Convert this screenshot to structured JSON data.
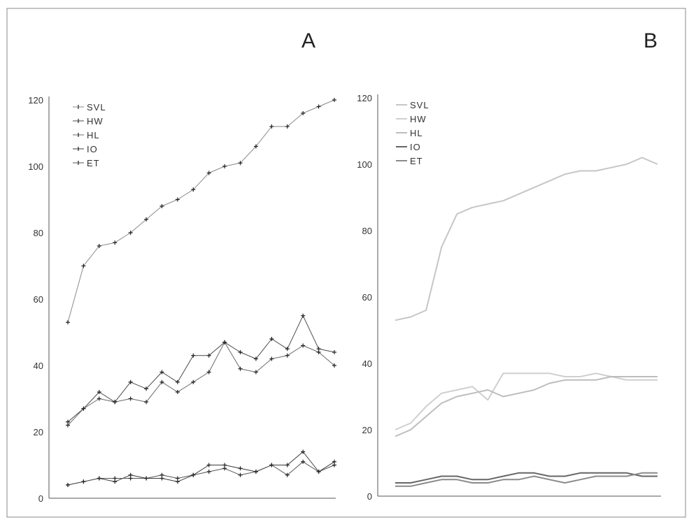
{
  "chart_data": [
    {
      "type": "line",
      "title": "A",
      "xlabel": "",
      "ylabel": "",
      "ylim": [
        0,
        120
      ],
      "yticks": [
        0,
        20,
        40,
        60,
        80,
        100,
        120
      ],
      "legend": "top-left",
      "x": [
        1,
        2,
        3,
        4,
        5,
        6,
        7,
        8,
        9,
        10,
        11,
        12,
        13,
        14,
        15,
        16,
        17,
        18
      ],
      "series": [
        {
          "name": "SVL",
          "values": [
            53,
            70,
            76,
            77,
            80,
            84,
            88,
            90,
            93,
            98,
            100,
            101,
            106,
            112,
            112,
            116,
            118,
            120
          ]
        },
        {
          "name": "HW",
          "values": [
            23,
            27,
            32,
            29,
            35,
            33,
            38,
            35,
            43,
            43,
            47,
            44,
            42,
            48,
            45,
            55,
            45,
            44
          ]
        },
        {
          "name": "HL",
          "values": [
            22,
            27,
            30,
            29,
            30,
            29,
            35,
            32,
            35,
            38,
            47,
            39,
            38,
            42,
            43,
            46,
            44,
            40
          ]
        },
        {
          "name": "IO",
          "values": [
            4,
            5,
            6,
            5,
            7,
            6,
            6,
            5,
            7,
            10,
            10,
            9,
            8,
            10,
            10,
            14,
            8,
            11
          ]
        },
        {
          "name": "ET",
          "values": [
            4,
            5,
            6,
            6,
            6,
            6,
            7,
            6,
            7,
            8,
            9,
            7,
            8,
            10,
            7,
            11,
            8,
            10
          ]
        }
      ]
    },
    {
      "type": "line",
      "title": "B",
      "xlabel": "",
      "ylabel": "",
      "ylim": [
        0,
        120
      ],
      "yticks": [
        0,
        20,
        40,
        60,
        80,
        100,
        120
      ],
      "legend": "top-left",
      "x": [
        1,
        2,
        3,
        4,
        5,
        6,
        7,
        8,
        9,
        10,
        11,
        12,
        13,
        14,
        15,
        16,
        17,
        18
      ],
      "series": [
        {
          "name": "SVL",
          "values": [
            53,
            54,
            56,
            75,
            85,
            87,
            88,
            89,
            91,
            93,
            95,
            97,
            98,
            98,
            99,
            100,
            102,
            100
          ]
        },
        {
          "name": "HW",
          "values": [
            20,
            22,
            27,
            31,
            32,
            33,
            29,
            37,
            37,
            37,
            37,
            36,
            36,
            37,
            36,
            35,
            35,
            35
          ]
        },
        {
          "name": "HL",
          "values": [
            18,
            20,
            24,
            28,
            30,
            31,
            32,
            30,
            31,
            32,
            34,
            35,
            35,
            35,
            36,
            36,
            36,
            36
          ]
        },
        {
          "name": "IO",
          "values": [
            4,
            4,
            5,
            6,
            6,
            5,
            5,
            6,
            7,
            7,
            6,
            6,
            7,
            7,
            7,
            7,
            6,
            6
          ]
        },
        {
          "name": "ET",
          "values": [
            3,
            3,
            4,
            5,
            5,
            4,
            4,
            5,
            5,
            6,
            5,
            4,
            5,
            6,
            6,
            6,
            7,
            7
          ]
        }
      ]
    }
  ]
}
